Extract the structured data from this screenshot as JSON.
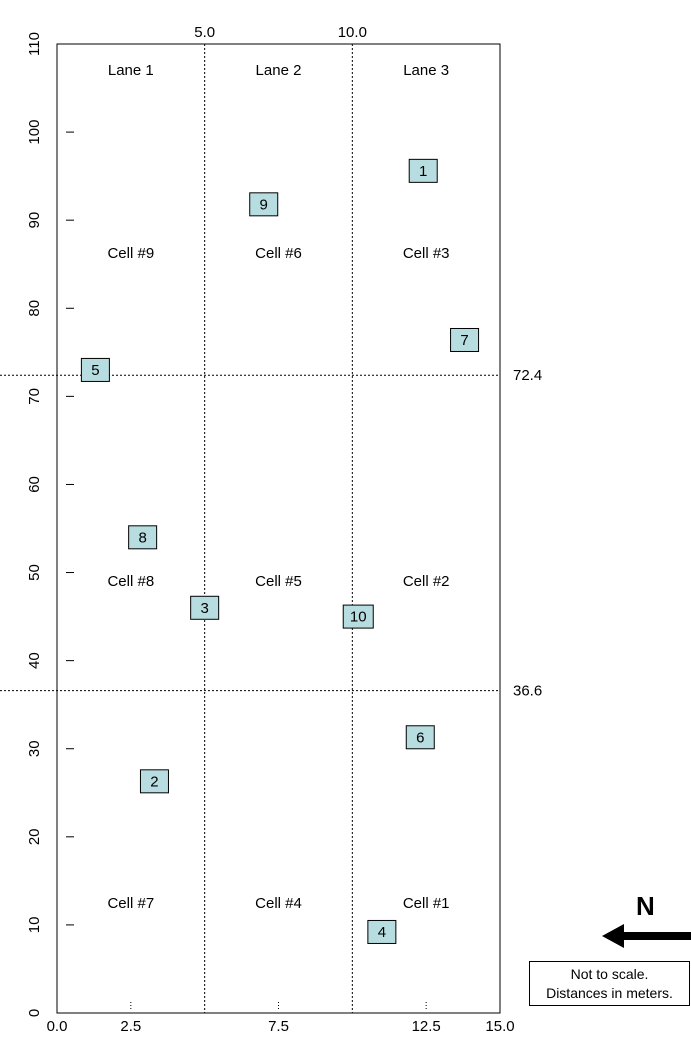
{
  "lanes": [
    "Lane 1",
    "Lane 2",
    "Lane 3"
  ],
  "cells": [
    {
      "label": "Cell #9",
      "lane": 1,
      "row": 3
    },
    {
      "label": "Cell #6",
      "lane": 2,
      "row": 3
    },
    {
      "label": "Cell #3",
      "lane": 3,
      "row": 3
    },
    {
      "label": "Cell #8",
      "lane": 1,
      "row": 2
    },
    {
      "label": "Cell #5",
      "lane": 2,
      "row": 2
    },
    {
      "label": "Cell #2",
      "lane": 3,
      "row": 2
    },
    {
      "label": "Cell #7",
      "lane": 1,
      "row": 1
    },
    {
      "label": "Cell #4",
      "lane": 2,
      "row": 1
    },
    {
      "label": "Cell #1",
      "lane": 3,
      "row": 1
    }
  ],
  "top_axis_labels": [
    "5.0",
    "10.0"
  ],
  "lane_divisions_x": [
    5.0,
    10.0
  ],
  "row_divisions_y": [
    72.4,
    36.6
  ],
  "row_division_labels": [
    "72.4",
    "36.6"
  ],
  "x_ticks": [
    "0.0",
    "2.5",
    "7.5",
    "12.5",
    "15.0"
  ],
  "x_tick_values": [
    0,
    2.5,
    7.5,
    12.5,
    15
  ],
  "y_ticks": [
    "0",
    "10",
    "20",
    "30",
    "40",
    "50",
    "60",
    "70",
    "80",
    "90",
    "100",
    "110"
  ],
  "xlim": [
    0,
    15
  ],
  "ylim": [
    0,
    110
  ],
  "points": [
    {
      "label": "1",
      "x": 12.4,
      "y": 95.6
    },
    {
      "label": "2",
      "x": 3.3,
      "y": 26.3
    },
    {
      "label": "3",
      "x": 5.0,
      "y": 46.0
    },
    {
      "label": "4",
      "x": 11.0,
      "y": 9.2
    },
    {
      "label": "5",
      "x": 1.3,
      "y": 73.0
    },
    {
      "label": "6",
      "x": 12.3,
      "y": 31.3
    },
    {
      "label": "7",
      "x": 13.8,
      "y": 76.4
    },
    {
      "label": "8",
      "x": 2.9,
      "y": 54.0
    },
    {
      "label": "9",
      "x": 7.0,
      "y": 91.8
    },
    {
      "label": "10",
      "x": 10.2,
      "y": 45.0
    }
  ],
  "note": {
    "line1": "Not to scale.",
    "line2": "Distances in meters."
  },
  "north_label": "N",
  "colors": {
    "marker_fill": "#b8dde0",
    "line": "#000000"
  }
}
